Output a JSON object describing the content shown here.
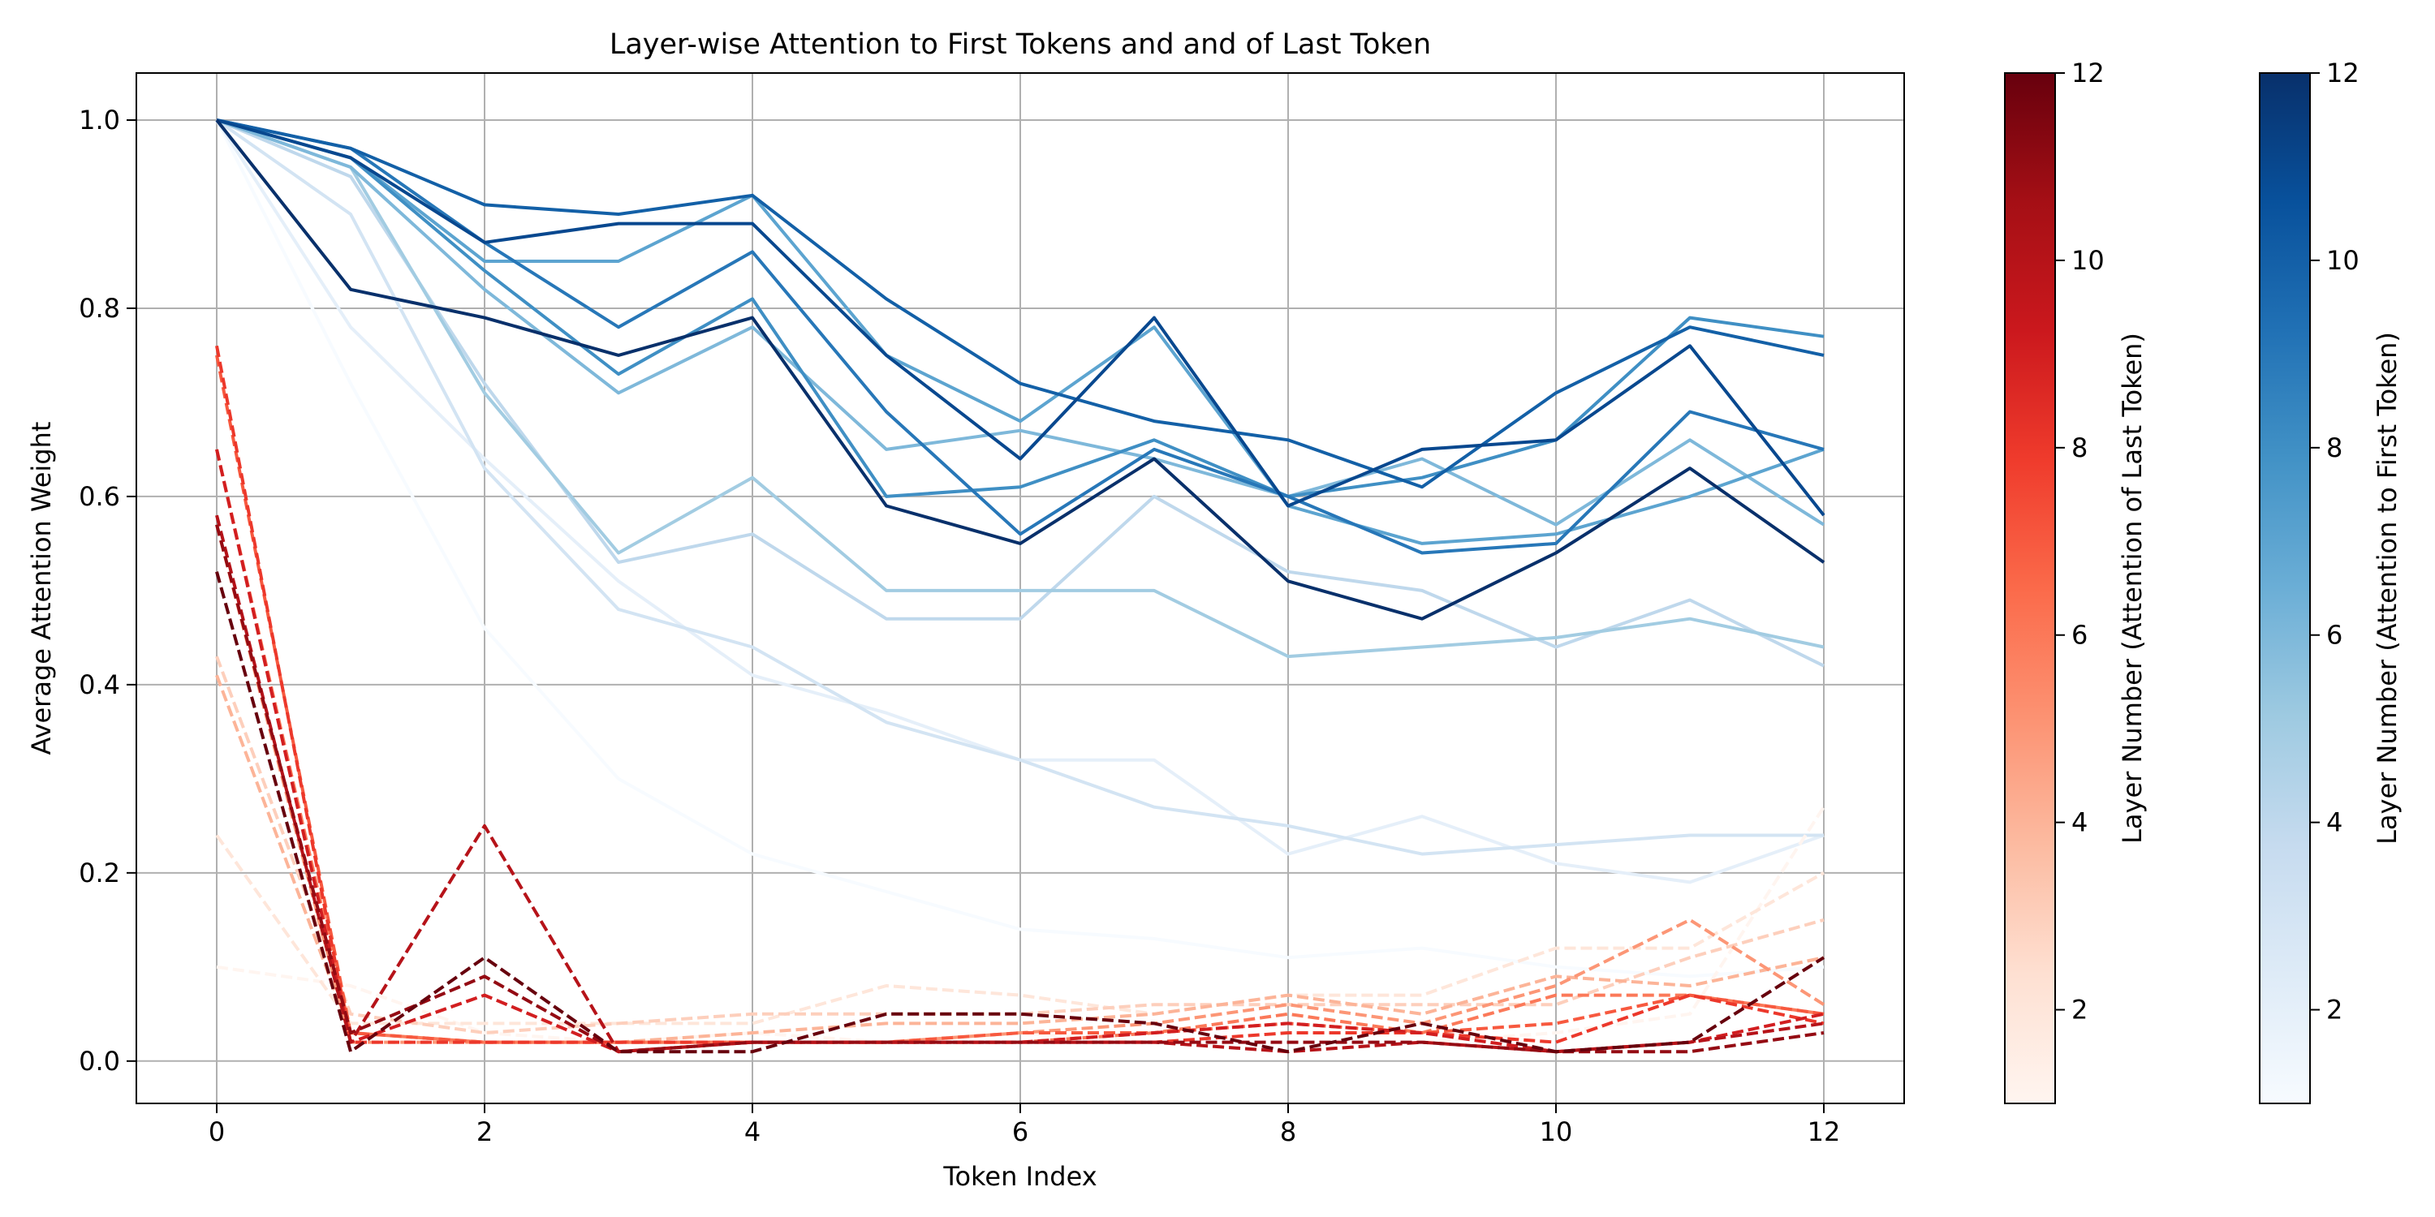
{
  "chart_data": {
    "type": "line",
    "title": "Layer-wise Attention to First Tokens and and of Last Token",
    "xlabel": "Token Index",
    "ylabel": "Average Attention Weight",
    "xlim": [
      -0.6,
      12.6
    ],
    "ylim": [
      -0.045,
      1.05
    ],
    "xticks": [
      "0",
      "2",
      "4",
      "6",
      "8",
      "10",
      "12"
    ],
    "yticks": [
      "0.0",
      "0.2",
      "0.4",
      "0.6",
      "0.8",
      "1.0"
    ],
    "grid": true,
    "x": [
      0,
      1,
      2,
      3,
      4,
      5,
      6,
      7,
      8,
      9,
      10,
      11,
      12
    ],
    "first_token_series": [
      {
        "layer": 1,
        "values": [
          1.0,
          0.72,
          0.46,
          0.3,
          0.22,
          0.18,
          0.14,
          0.13,
          0.11,
          0.12,
          0.1,
          0.09,
          0.1
        ]
      },
      {
        "layer": 2,
        "values": [
          1.0,
          0.78,
          0.64,
          0.51,
          0.41,
          0.37,
          0.32,
          0.32,
          0.22,
          0.26,
          0.21,
          0.19,
          0.24
        ]
      },
      {
        "layer": 3,
        "values": [
          1.0,
          0.9,
          0.63,
          0.48,
          0.44,
          0.36,
          0.32,
          0.27,
          0.25,
          0.22,
          0.23,
          0.24,
          0.24
        ]
      },
      {
        "layer": 4,
        "values": [
          1.0,
          0.94,
          0.72,
          0.53,
          0.56,
          0.47,
          0.47,
          0.6,
          0.52,
          0.5,
          0.44,
          0.49,
          0.42
        ]
      },
      {
        "layer": 5,
        "values": [
          1.0,
          0.95,
          0.71,
          0.54,
          0.62,
          0.5,
          0.5,
          0.5,
          0.43,
          0.44,
          0.45,
          0.47,
          0.44
        ]
      },
      {
        "layer": 6,
        "values": [
          1.0,
          0.95,
          0.82,
          0.71,
          0.78,
          0.65,
          0.67,
          0.64,
          0.6,
          0.64,
          0.57,
          0.66,
          0.57
        ]
      },
      {
        "layer": 7,
        "values": [
          1.0,
          0.96,
          0.85,
          0.85,
          0.92,
          0.75,
          0.68,
          0.78,
          0.59,
          0.55,
          0.56,
          0.6,
          0.65
        ]
      },
      {
        "layer": 8,
        "values": [
          1.0,
          0.96,
          0.84,
          0.73,
          0.81,
          0.6,
          0.61,
          0.66,
          0.6,
          0.62,
          0.66,
          0.79,
          0.77
        ]
      },
      {
        "layer": 9,
        "values": [
          1.0,
          0.97,
          0.87,
          0.78,
          0.86,
          0.69,
          0.56,
          0.65,
          0.6,
          0.54,
          0.55,
          0.69,
          0.65
        ]
      },
      {
        "layer": 10,
        "values": [
          1.0,
          0.97,
          0.91,
          0.9,
          0.92,
          0.81,
          0.72,
          0.68,
          0.66,
          0.61,
          0.71,
          0.78,
          0.75
        ]
      },
      {
        "layer": 11,
        "values": [
          1.0,
          0.96,
          0.87,
          0.89,
          0.89,
          0.75,
          0.64,
          0.79,
          0.59,
          0.65,
          0.66,
          0.76,
          0.58
        ]
      },
      {
        "layer": 12,
        "values": [
          1.0,
          0.82,
          0.79,
          0.75,
          0.79,
          0.59,
          0.55,
          0.64,
          0.51,
          0.47,
          0.54,
          0.63,
          0.53
        ]
      }
    ],
    "last_token_series": [
      {
        "layer": 1,
        "values": [
          0.1,
          0.08,
          0.03,
          0.02,
          0.03,
          0.02,
          0.03,
          0.02,
          0.01,
          0.02,
          0.03,
          0.05,
          0.27
        ]
      },
      {
        "layer": 2,
        "values": [
          0.24,
          0.04,
          0.04,
          0.04,
          0.04,
          0.08,
          0.07,
          0.05,
          0.07,
          0.07,
          0.12,
          0.12,
          0.2
        ]
      },
      {
        "layer": 3,
        "values": [
          0.43,
          0.05,
          0.03,
          0.04,
          0.05,
          0.05,
          0.05,
          0.06,
          0.06,
          0.06,
          0.06,
          0.11,
          0.15
        ]
      },
      {
        "layer": 4,
        "values": [
          0.41,
          0.03,
          0.02,
          0.02,
          0.03,
          0.04,
          0.04,
          0.05,
          0.07,
          0.05,
          0.09,
          0.08,
          0.11
        ]
      },
      {
        "layer": 5,
        "values": [
          0.57,
          0.02,
          0.02,
          0.02,
          0.02,
          0.02,
          0.03,
          0.04,
          0.06,
          0.04,
          0.08,
          0.15,
          0.06
        ]
      },
      {
        "layer": 6,
        "values": [
          0.65,
          0.03,
          0.02,
          0.02,
          0.02,
          0.02,
          0.02,
          0.03,
          0.05,
          0.03,
          0.07,
          0.07,
          0.05
        ]
      },
      {
        "layer": 7,
        "values": [
          0.75,
          0.03,
          0.02,
          0.02,
          0.02,
          0.02,
          0.03,
          0.03,
          0.04,
          0.03,
          0.04,
          0.07,
          0.05
        ]
      },
      {
        "layer": 8,
        "values": [
          0.76,
          0.02,
          0.02,
          0.02,
          0.02,
          0.02,
          0.02,
          0.02,
          0.03,
          0.03,
          0.02,
          0.07,
          0.04
        ]
      },
      {
        "layer": 9,
        "values": [
          0.65,
          0.02,
          0.07,
          0.01,
          0.02,
          0.02,
          0.02,
          0.03,
          0.04,
          0.03,
          0.01,
          0.02,
          0.05
        ]
      },
      {
        "layer": 10,
        "values": [
          0.58,
          0.02,
          0.25,
          0.01,
          0.02,
          0.02,
          0.02,
          0.02,
          0.01,
          0.02,
          0.01,
          0.02,
          0.04
        ]
      },
      {
        "layer": 11,
        "values": [
          0.57,
          0.03,
          0.09,
          0.01,
          0.02,
          0.02,
          0.02,
          0.02,
          0.02,
          0.02,
          0.01,
          0.01,
          0.03
        ]
      },
      {
        "layer": 12,
        "values": [
          0.52,
          0.01,
          0.11,
          0.01,
          0.01,
          0.05,
          0.05,
          0.04,
          0.01,
          0.04,
          0.01,
          0.02,
          0.11
        ]
      }
    ],
    "colorbar_reds": {
      "label": "Layer Number (Attention of Last Token)",
      "range": [
        1,
        12
      ],
      "ticks": [
        "2",
        "4",
        "6",
        "8",
        "10",
        "12"
      ],
      "colormap": "Reds",
      "line_style": "dashed"
    },
    "colorbar_blues": {
      "label": "Layer Number (Attention to First Token)",
      "range": [
        1,
        12
      ],
      "ticks": [
        "2",
        "4",
        "6",
        "8",
        "10",
        "12"
      ],
      "colormap": "Blues",
      "line_style": "solid"
    }
  }
}
